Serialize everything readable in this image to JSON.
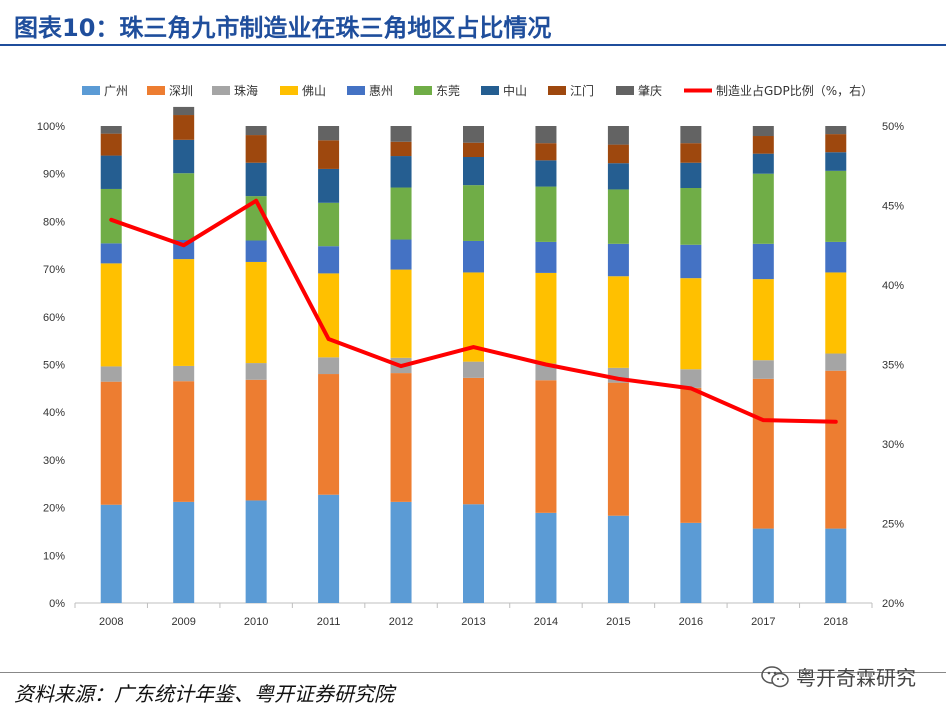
{
  "title": "图表10：珠三角九市制造业在珠三角地区占比情况",
  "source": "资料来源：广东统计年鉴、粤开证券研究院",
  "watermark": "粤开奇霖研究",
  "chart_data": {
    "type": "bar",
    "stacked": true,
    "categories": [
      "2008",
      "2009",
      "2010",
      "2011",
      "2012",
      "2013",
      "2014",
      "2015",
      "2016",
      "2017",
      "2018"
    ],
    "y_left": {
      "min": 0,
      "max": 100,
      "ticks": [
        "0%",
        "10%",
        "20%",
        "30%",
        "40%",
        "50%",
        "60%",
        "70%",
        "80%",
        "90%",
        "100%"
      ]
    },
    "y_right": {
      "min": 20,
      "max": 50,
      "ticks": [
        "20%",
        "25%",
        "30%",
        "35%",
        "40%",
        "45%",
        "50%"
      ]
    },
    "series": [
      {
        "name": "广州",
        "color": "#5b9bd5",
        "values": [
          20.6,
          21.2,
          21.5,
          22.7,
          21.2,
          20.7,
          18.9,
          18.3,
          16.8,
          15.6,
          15.6
        ]
      },
      {
        "name": "深圳",
        "color": "#ed7d31",
        "values": [
          25.8,
          25.3,
          25.3,
          25.3,
          27.0,
          26.5,
          27.8,
          27.9,
          28.3,
          31.4,
          33.1
        ]
      },
      {
        "name": "珠海",
        "color": "#a5a5a5",
        "values": [
          3.2,
          3.2,
          3.5,
          3.5,
          3.2,
          3.4,
          3.5,
          3.1,
          3.9,
          3.9,
          3.6
        ]
      },
      {
        "name": "佛山",
        "color": "#ffc000",
        "values": [
          21.6,
          22.4,
          21.2,
          17.6,
          18.5,
          18.7,
          19.0,
          19.2,
          19.1,
          17.0,
          17.0
        ]
      },
      {
        "name": "惠州",
        "color": "#4472c4",
        "values": [
          4.2,
          4.0,
          4.5,
          5.7,
          6.3,
          6.6,
          6.5,
          6.8,
          7.0,
          7.4,
          6.4
        ]
      },
      {
        "name": "东莞",
        "color": "#70ad47",
        "values": [
          11.4,
          14.0,
          9.3,
          9.1,
          10.9,
          11.7,
          11.6,
          11.4,
          11.9,
          14.7,
          14.9
        ]
      },
      {
        "name": "中山",
        "color": "#255e91",
        "values": [
          7.0,
          7.0,
          7.0,
          7.1,
          6.6,
          5.9,
          5.5,
          5.5,
          5.3,
          4.2,
          3.9
        ]
      },
      {
        "name": "江门",
        "color": "#9e480e",
        "values": [
          4.6,
          5.2,
          5.8,
          6.0,
          3.0,
          3.0,
          3.6,
          3.9,
          4.1,
          3.7,
          3.8
        ]
      },
      {
        "name": "肇庆",
        "color": "#636363",
        "values": [
          1.6,
          1.7,
          1.9,
          3.0,
          3.3,
          3.5,
          3.6,
          3.9,
          3.6,
          2.1,
          1.7
        ]
      }
    ],
    "line": {
      "name": "制造业占GDP比例（%，右）",
      "color": "#ff0000",
      "axis": "right",
      "values": [
        44.1,
        42.5,
        45.3,
        36.6,
        34.9,
        36.1,
        35.0,
        34.1,
        33.5,
        31.5,
        31.4
      ]
    },
    "legend_position": "top"
  }
}
